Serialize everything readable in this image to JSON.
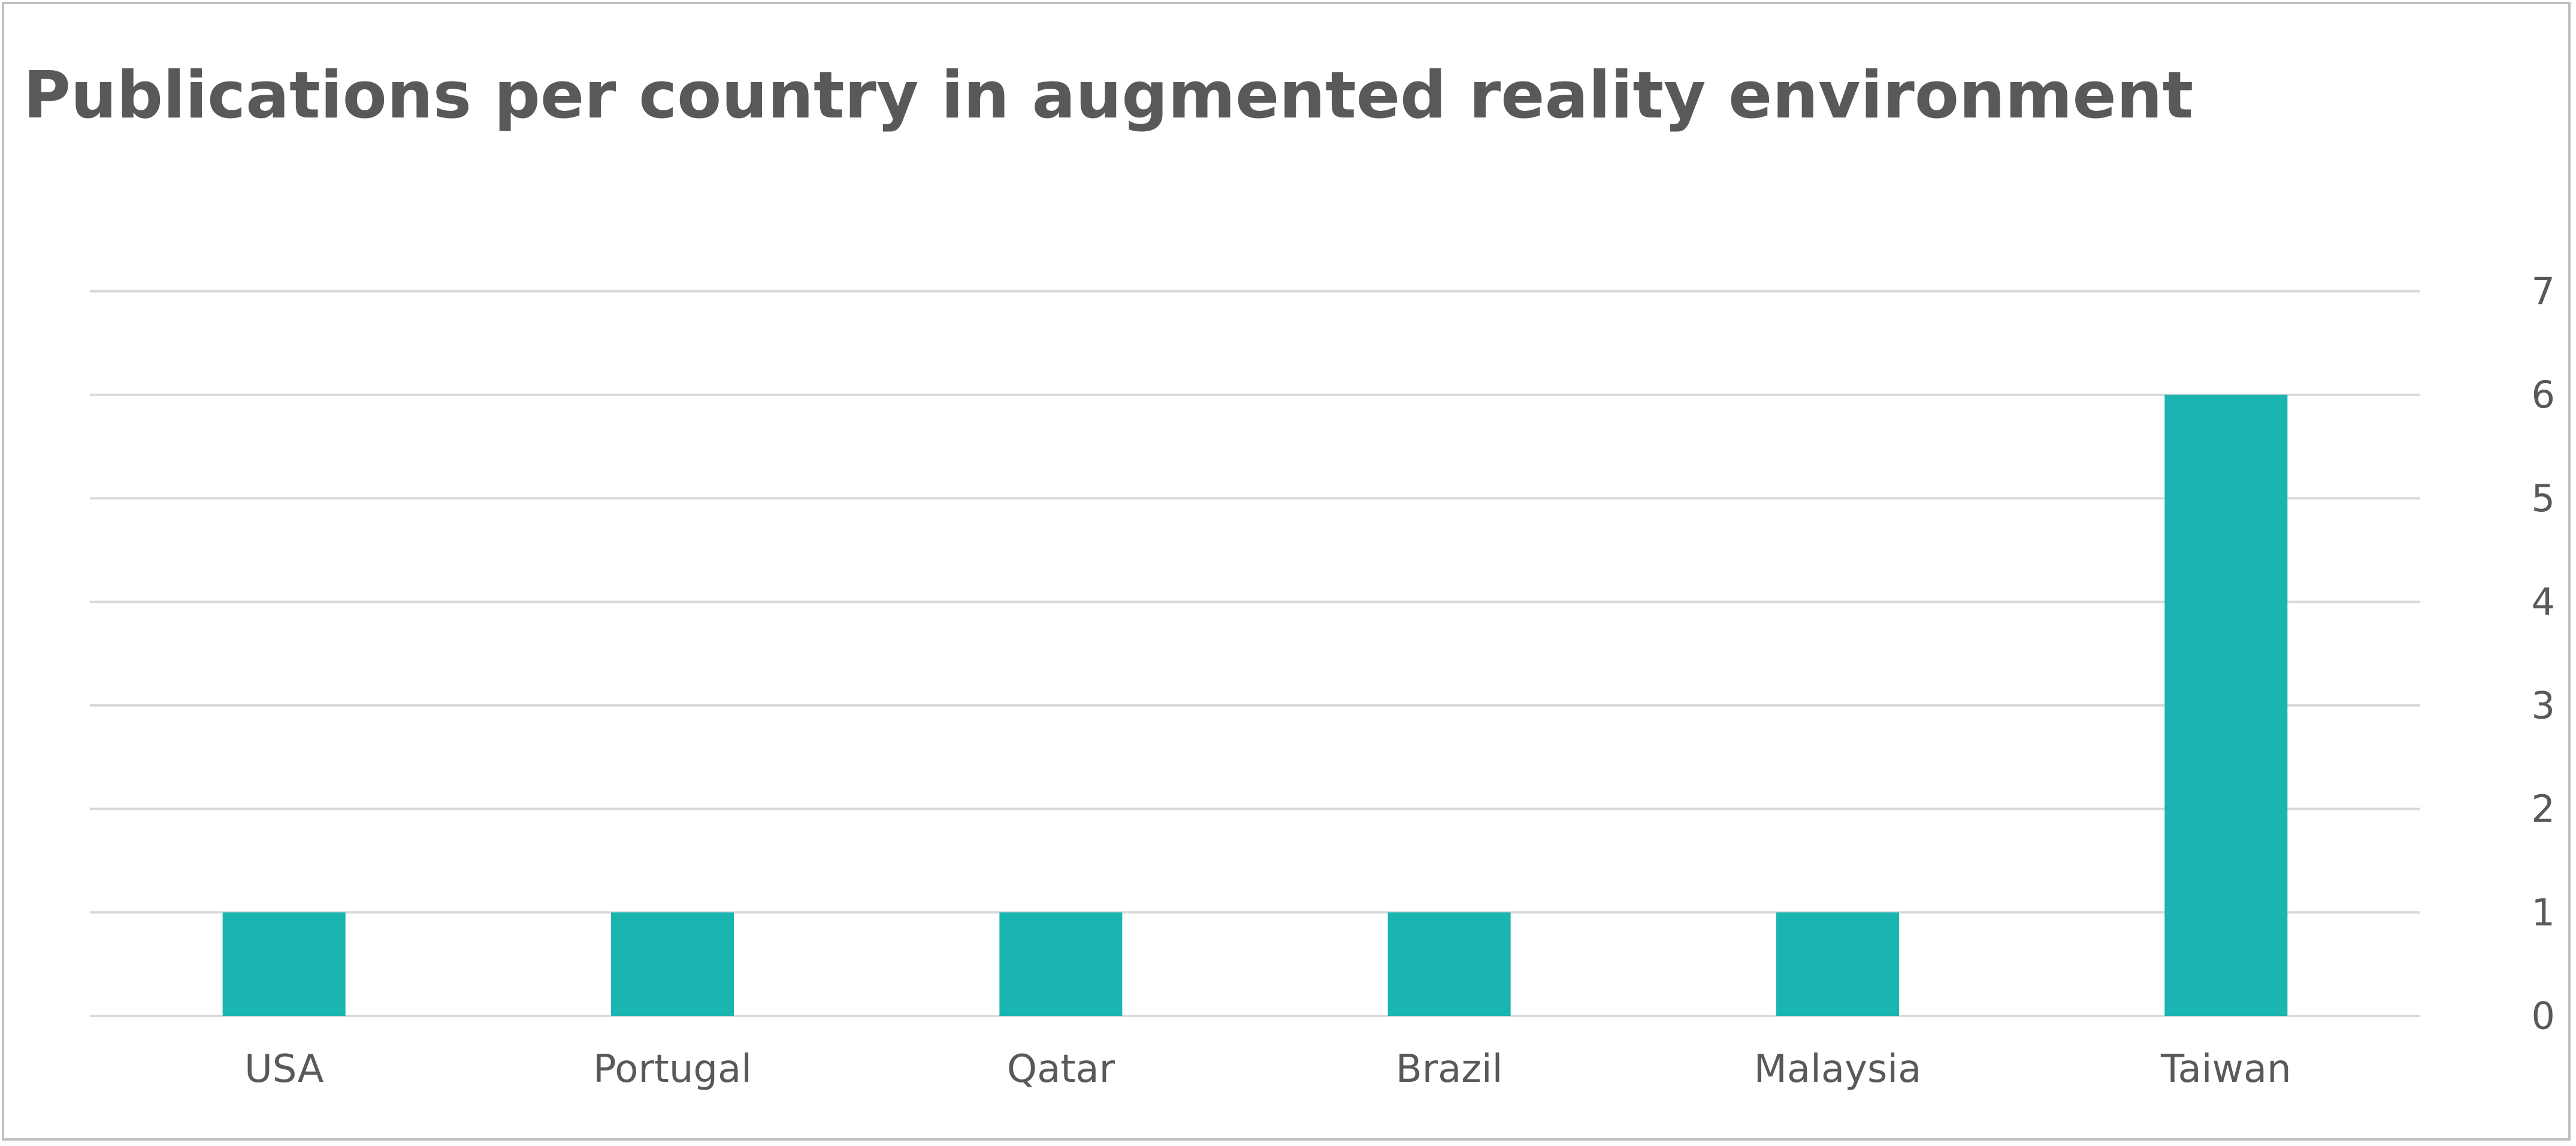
{
  "chart_data": {
    "type": "bar",
    "title": "Publications per country in augmented reality environment",
    "categories": [
      "USA",
      "Portugal",
      "Qatar",
      "Brazil",
      "Malaysia",
      "Taiwan"
    ],
    "values": [
      1,
      1,
      1,
      1,
      1,
      6
    ],
    "ylim": [
      0,
      7
    ],
    "yticks": [
      "0",
      "1",
      "2",
      "3",
      "4",
      "5",
      "6",
      "7"
    ],
    "y_axis_side": "right",
    "grid": true,
    "legend": "none",
    "colors": {
      "bar": "#1ab5b1",
      "grid": "#d9d9d9",
      "text": "#595959"
    }
  }
}
